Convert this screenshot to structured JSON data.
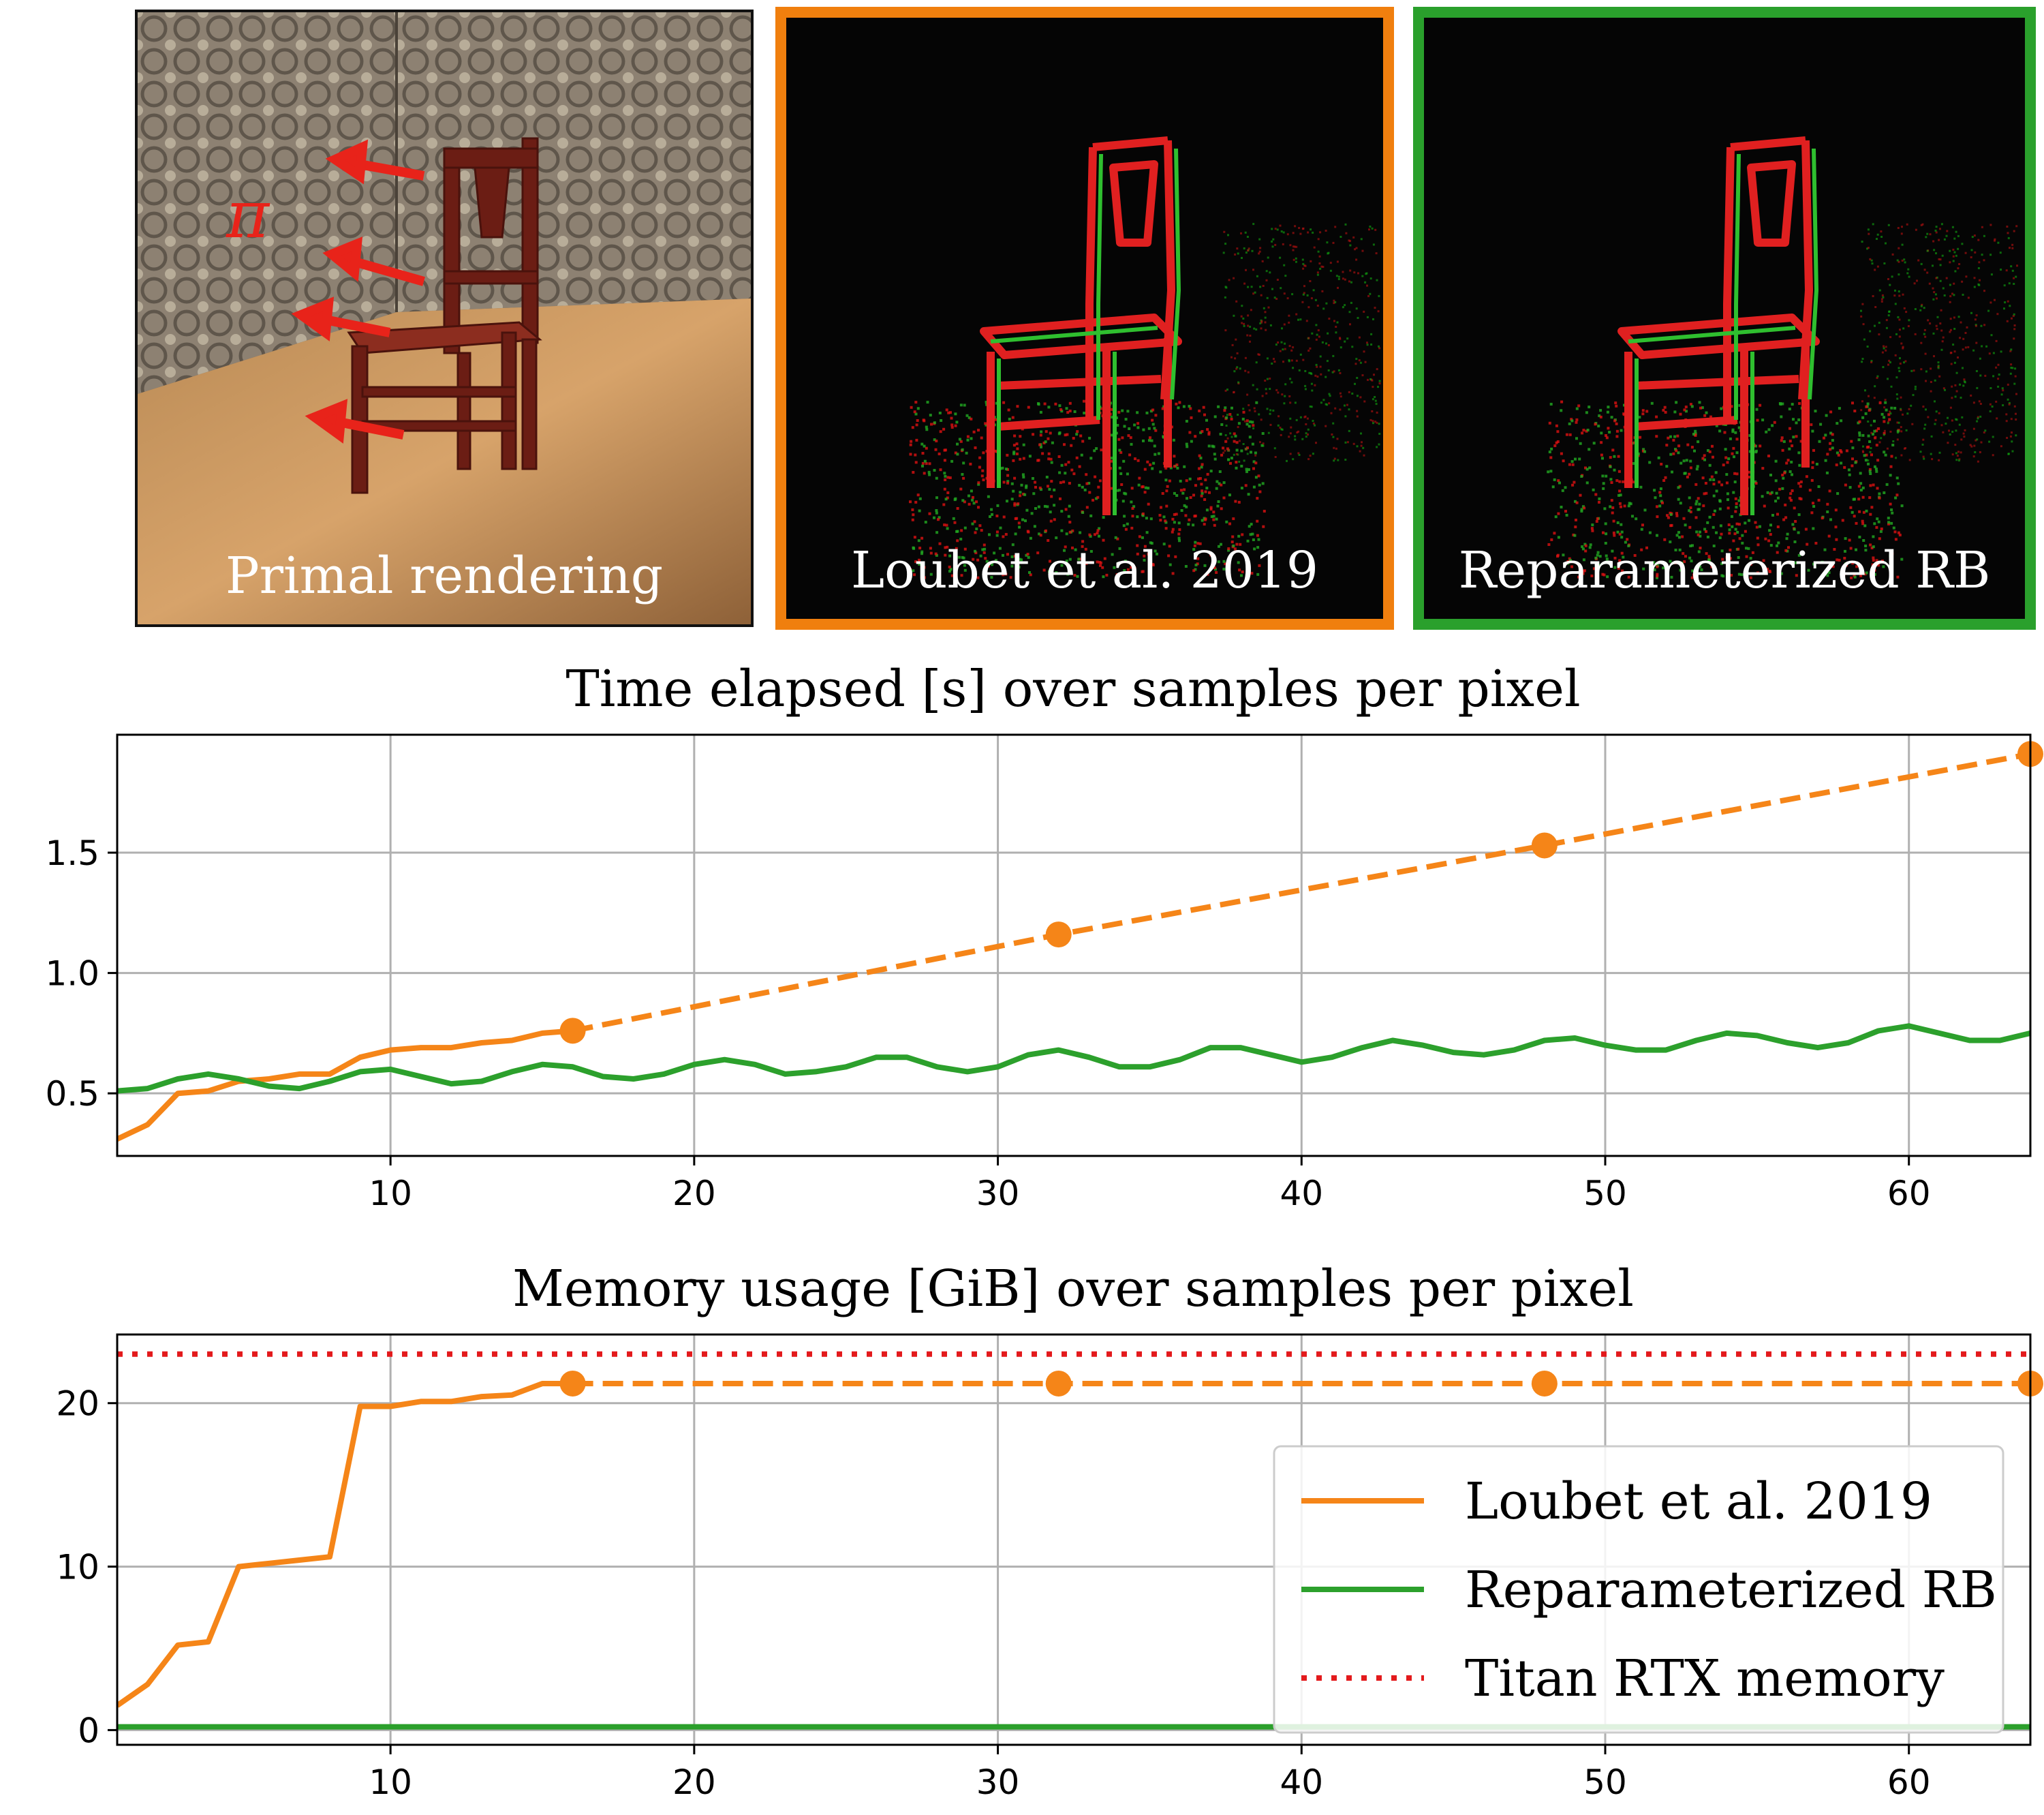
{
  "panels": [
    {
      "id": "primal",
      "caption": "Primal rendering",
      "overlay_symbol": "π",
      "arrow_color": "#e8231a"
    },
    {
      "id": "loubet",
      "caption": "Loubet et al. 2019",
      "border_color": "#f07f0e"
    },
    {
      "id": "rb",
      "caption": "Reparameterized RB",
      "border_color": "#2aa02c"
    }
  ],
  "colors": {
    "orange": "#f58518",
    "green": "#2ca02c",
    "red": "#e31a1c"
  },
  "chart_data": [
    {
      "type": "line",
      "title": "Time elapsed [s] over samples per pixel",
      "xlabel": "",
      "ylabel": "",
      "xlim": [
        1,
        64
      ],
      "ylim": [
        0.24,
        1.99
      ],
      "xticks": [
        10,
        20,
        30,
        40,
        50,
        60
      ],
      "yticks": [
        0.5,
        1.0,
        1.5
      ],
      "ytick_labels": [
        "0.5",
        "1.0",
        "1.5"
      ],
      "grid": true,
      "series": [
        {
          "name": "Loubet et al. 2019",
          "color": "#f58518",
          "style": "solid",
          "x": [
            1,
            2,
            3,
            4,
            5,
            6,
            7,
            8,
            9,
            10,
            11,
            12,
            13,
            14,
            15,
            16
          ],
          "y": [
            0.31,
            0.37,
            0.5,
            0.51,
            0.55,
            0.56,
            0.58,
            0.58,
            0.65,
            0.68,
            0.69,
            0.69,
            0.71,
            0.72,
            0.75,
            0.76
          ]
        },
        {
          "name": "Loubet et al. 2019",
          "color": "#f58518",
          "style": "dashed",
          "markers": true,
          "x": [
            16,
            32,
            48,
            64
          ],
          "y": [
            0.76,
            1.16,
            1.53,
            1.91
          ]
        },
        {
          "name": "Reparameterized RB",
          "color": "#2ca02c",
          "style": "solid",
          "x": [
            1,
            2,
            3,
            4,
            5,
            6,
            7,
            8,
            9,
            10,
            11,
            12,
            13,
            14,
            15,
            16,
            17,
            18,
            19,
            20,
            21,
            22,
            23,
            24,
            25,
            26,
            27,
            28,
            29,
            30,
            31,
            32,
            33,
            34,
            35,
            36,
            37,
            38,
            39,
            40,
            41,
            42,
            43,
            44,
            45,
            46,
            47,
            48,
            49,
            50,
            51,
            52,
            53,
            54,
            55,
            56,
            57,
            58,
            59,
            60,
            61,
            62,
            63,
            64
          ],
          "y": [
            0.51,
            0.52,
            0.56,
            0.58,
            0.56,
            0.53,
            0.52,
            0.55,
            0.59,
            0.6,
            0.57,
            0.54,
            0.55,
            0.59,
            0.62,
            0.61,
            0.57,
            0.56,
            0.58,
            0.62,
            0.64,
            0.62,
            0.58,
            0.59,
            0.61,
            0.65,
            0.65,
            0.61,
            0.59,
            0.61,
            0.66,
            0.68,
            0.65,
            0.61,
            0.61,
            0.64,
            0.69,
            0.69,
            0.66,
            0.63,
            0.65,
            0.69,
            0.72,
            0.7,
            0.67,
            0.66,
            0.68,
            0.72,
            0.73,
            0.7,
            0.68,
            0.68,
            0.72,
            0.75,
            0.74,
            0.71,
            0.69,
            0.71,
            0.76,
            0.78,
            0.75,
            0.72,
            0.72,
            0.75
          ]
        }
      ]
    },
    {
      "type": "line",
      "title": "Memory usage [GiB] over samples per pixel",
      "xlabel": "",
      "ylabel": "",
      "xlim": [
        1,
        64
      ],
      "ylim": [
        -0.9,
        24.2
      ],
      "xticks": [
        10,
        20,
        30,
        40,
        50,
        60
      ],
      "yticks": [
        0,
        10,
        20
      ],
      "ytick_labels": [
        "0",
        "10",
        "20"
      ],
      "grid": true,
      "legend": {
        "position": "lower-right",
        "entries": [
          {
            "label": "Loubet et al. 2019",
            "color": "#f58518",
            "style": "solid"
          },
          {
            "label": "Reparameterized RB",
            "color": "#2ca02c",
            "style": "solid"
          },
          {
            "label": "Titan RTX memory",
            "color": "#e31a1c",
            "style": "dotted"
          }
        ]
      },
      "series": [
        {
          "name": "Loubet et al. 2019",
          "color": "#f58518",
          "style": "solid",
          "x": [
            1,
            2,
            3,
            4,
            5,
            6,
            7,
            8,
            9,
            10,
            11,
            12,
            13,
            14,
            15,
            16
          ],
          "y": [
            1.5,
            2.8,
            5.2,
            5.4,
            10.0,
            10.2,
            10.4,
            10.6,
            19.8,
            19.8,
            20.1,
            20.1,
            20.4,
            20.5,
            21.2,
            21.2
          ]
        },
        {
          "name": "Loubet et al. 2019",
          "color": "#f58518",
          "style": "dashed",
          "markers": true,
          "x": [
            16,
            32,
            48,
            64
          ],
          "y": [
            21.2,
            21.2,
            21.2,
            21.2
          ]
        },
        {
          "name": "Reparameterized RB",
          "color": "#2ca02c",
          "style": "solid",
          "x": [
            1,
            64
          ],
          "y": [
            0.2,
            0.2
          ]
        },
        {
          "name": "Titan RTX memory",
          "color": "#e31a1c",
          "style": "dotted",
          "x": [
            1,
            64
          ],
          "y": [
            23.0,
            23.0
          ]
        }
      ]
    }
  ]
}
